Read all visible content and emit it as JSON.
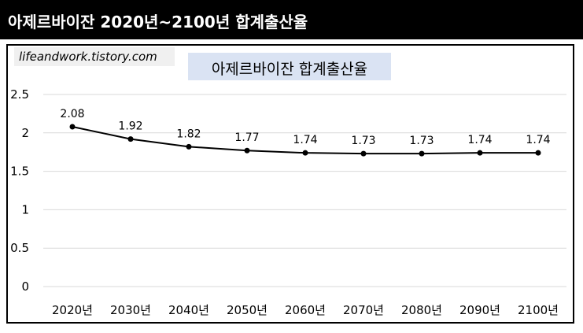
{
  "banner": {
    "title": "아제르바이잔 2020년~2100년 합계출산율"
  },
  "watermark": {
    "text": "lifeandwork.tistory.com"
  },
  "colors": {
    "banner_bg": "#000000",
    "title_box_bg": "#dae3f3",
    "line": "#000000",
    "grid": "#d9d9d9"
  },
  "chart_data": {
    "type": "line",
    "title": "아제르바이잔 합계출산율",
    "categories": [
      "2020년",
      "2030년",
      "2040년",
      "2050년",
      "2060년",
      "2070년",
      "2080년",
      "2090년",
      "2100년"
    ],
    "series": [
      {
        "values": [
          2.08,
          1.92,
          1.82,
          1.77,
          1.74,
          1.73,
          1.73,
          1.74,
          1.74
        ],
        "labels": [
          "2.08",
          "1.92",
          "1.82",
          "1.77",
          "1.74",
          "1.73",
          "1.73",
          "1.74",
          "1.74"
        ]
      }
    ],
    "yticks": [
      "0",
      "0.5",
      "1",
      "1.5",
      "2",
      "2.5"
    ],
    "ylim": [
      0,
      2.5
    ],
    "grid": true,
    "legend": "none"
  }
}
